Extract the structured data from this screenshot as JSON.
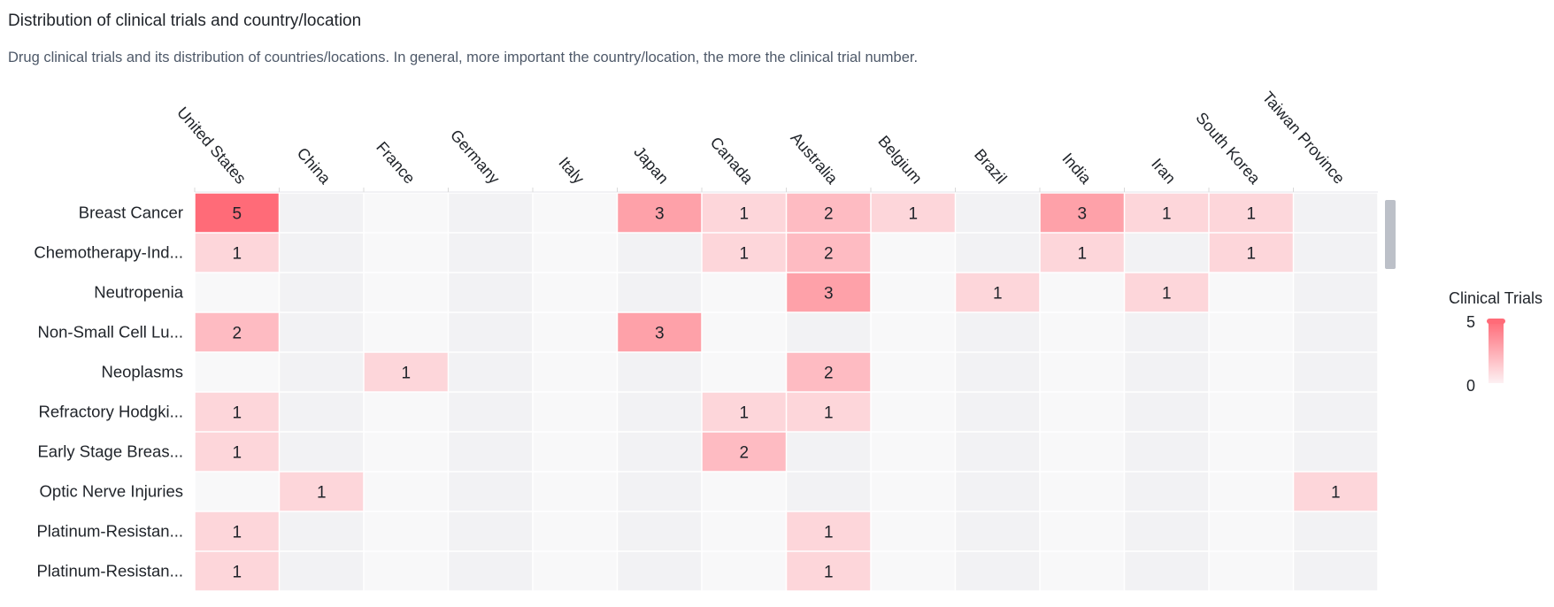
{
  "header": {
    "title": "Distribution of clinical trials and country/location",
    "subtitle": "Drug clinical trials and its distribution of countries/locations. In general, more important the country/location, the more the clinical trial number."
  },
  "legend": {
    "title": "Clinical Trials",
    "max_label": "5",
    "min_label": "0"
  },
  "colors": {
    "max": "#ff6b78",
    "min": "#fdf1f3",
    "empty_row_even": "#f8f8f9",
    "empty_row_odd": "#f2f2f4",
    "text": "#1f2329",
    "scrollbar": "#bcc0c8"
  },
  "chart_data": {
    "type": "heatmap",
    "title": "",
    "x": [
      "United States",
      "China",
      "France",
      "Germany",
      "Italy",
      "Japan",
      "Canada",
      "Australia",
      "Belgium",
      "Brazil",
      "India",
      "Iran",
      "South Korea",
      "Taiwan Province"
    ],
    "y": [
      "Breast Cancer",
      "Chemotherapy-Ind...",
      "Neutropenia",
      "Non-Small Cell Lu...",
      "Neoplasms",
      "Refractory Hodgki...",
      "Early Stage Breas...",
      "Optic Nerve Injuries",
      "Platinum-Resistan...",
      "Platinum-Resistan..."
    ],
    "values": [
      [
        5,
        null,
        null,
        null,
        null,
        3,
        1,
        2,
        1,
        null,
        3,
        1,
        1,
        null
      ],
      [
        1,
        null,
        null,
        null,
        null,
        null,
        1,
        2,
        null,
        null,
        1,
        null,
        1,
        null
      ],
      [
        null,
        null,
        null,
        null,
        null,
        null,
        null,
        3,
        null,
        1,
        null,
        1,
        null,
        null
      ],
      [
        2,
        null,
        null,
        null,
        null,
        3,
        null,
        null,
        null,
        null,
        null,
        null,
        null,
        null
      ],
      [
        null,
        null,
        1,
        null,
        null,
        null,
        null,
        2,
        null,
        null,
        null,
        null,
        null,
        null
      ],
      [
        1,
        null,
        null,
        null,
        null,
        null,
        1,
        1,
        null,
        null,
        null,
        null,
        null,
        null
      ],
      [
        1,
        null,
        null,
        null,
        null,
        null,
        2,
        null,
        null,
        null,
        null,
        null,
        null,
        null
      ],
      [
        null,
        1,
        null,
        null,
        null,
        null,
        null,
        null,
        null,
        null,
        null,
        null,
        null,
        1
      ],
      [
        1,
        null,
        null,
        null,
        null,
        null,
        null,
        1,
        null,
        null,
        null,
        null,
        null,
        null
      ],
      [
        1,
        null,
        null,
        null,
        null,
        null,
        null,
        1,
        null,
        null,
        null,
        null,
        null,
        null
      ]
    ],
    "value_range": [
      0,
      5
    ],
    "legend": "right"
  }
}
